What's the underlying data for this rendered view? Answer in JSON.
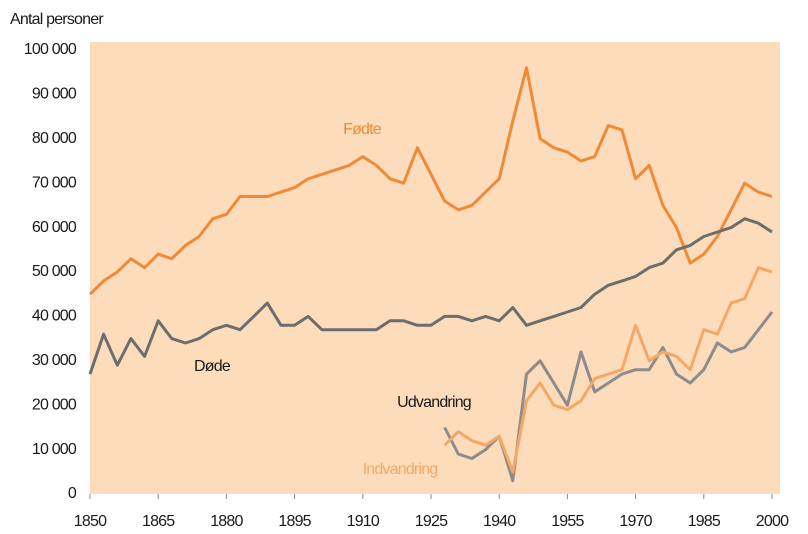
{
  "chart_data": {
    "type": "line",
    "y_axis_label": "Antal personer",
    "x": [
      1850,
      1853,
      1856,
      1859,
      1862,
      1865,
      1868,
      1871,
      1874,
      1877,
      1880,
      1883,
      1886,
      1889,
      1892,
      1895,
      1898,
      1901,
      1904,
      1907,
      1910,
      1913,
      1916,
      1919,
      1922,
      1925,
      1928,
      1931,
      1934,
      1937,
      1940,
      1943,
      1946,
      1949,
      1952,
      1955,
      1958,
      1961,
      1964,
      1967,
      1970,
      1973,
      1976,
      1979,
      1982,
      1985,
      1988,
      1991,
      1994,
      1997,
      2000
    ],
    "series": [
      {
        "name": "Fødte",
        "color": "#f08a36",
        "values": [
          45000,
          48000,
          50000,
          53000,
          51000,
          54000,
          53000,
          56000,
          58000,
          62000,
          63000,
          67000,
          67000,
          67000,
          68000,
          69000,
          71000,
          72000,
          73000,
          74000,
          76000,
          74000,
          71000,
          70000,
          78000,
          72000,
          66000,
          64000,
          65000,
          68000,
          71000,
          84000,
          96000,
          80000,
          78000,
          77000,
          75000,
          76000,
          83000,
          82000,
          71000,
          74000,
          65000,
          60000,
          52000,
          54000,
          58000,
          64000,
          70000,
          68000,
          67000
        ]
      },
      {
        "name": "Døde",
        "color": "#6d6d6d",
        "values": [
          27000,
          36000,
          29000,
          35000,
          31000,
          39000,
          35000,
          34000,
          35000,
          37000,
          38000,
          37000,
          40000,
          43000,
          38000,
          38000,
          40000,
          37000,
          37000,
          37000,
          37000,
          37000,
          39000,
          39000,
          38000,
          38000,
          40000,
          40000,
          39000,
          40000,
          39000,
          42000,
          38000,
          39000,
          40000,
          41000,
          42000,
          45000,
          47000,
          48000,
          49000,
          51000,
          52000,
          55000,
          56000,
          58000,
          59000,
          60000,
          62000,
          61000,
          59000
        ]
      },
      {
        "name": "Udvandring",
        "color": "#8c8c8c",
        "values": [
          null,
          null,
          null,
          null,
          null,
          null,
          null,
          null,
          null,
          null,
          null,
          null,
          null,
          null,
          null,
          null,
          null,
          null,
          null,
          null,
          null,
          null,
          null,
          null,
          null,
          null,
          15000,
          9000,
          8000,
          10000,
          13000,
          3000,
          27000,
          30000,
          25000,
          20000,
          32000,
          23000,
          25000,
          27000,
          28000,
          28000,
          33000,
          27000,
          25000,
          28000,
          34000,
          32000,
          33000,
          37000,
          41000
        ]
      },
      {
        "name": "Indvandring",
        "color": "#f5a866",
        "values": [
          null,
          null,
          null,
          null,
          null,
          null,
          null,
          null,
          null,
          null,
          null,
          null,
          null,
          null,
          null,
          null,
          null,
          null,
          null,
          null,
          null,
          null,
          null,
          null,
          null,
          null,
          11000,
          14000,
          12000,
          11000,
          13000,
          5000,
          21000,
          25000,
          20000,
          19000,
          21000,
          26000,
          27000,
          28000,
          38000,
          30000,
          32000,
          31000,
          28000,
          37000,
          36000,
          43000,
          44000,
          51000,
          50000
        ]
      }
    ],
    "xlim": [
      1850,
      2000
    ],
    "xticks": [
      1850,
      1865,
      1880,
      1895,
      1910,
      1925,
      1940,
      1955,
      1970,
      1985,
      2000
    ],
    "ylim": [
      0,
      100000
    ],
    "yticks": [
      0,
      {
        "value": 10000,
        "label": "10 000"
      },
      {
        "value": 20000,
        "label": "20 000"
      },
      {
        "value": 30000,
        "label": "30 000"
      },
      {
        "value": 40000,
        "label": "40 000"
      },
      {
        "value": 50000,
        "label": "50 000"
      },
      {
        "value": 60000,
        "label": "60 000"
      },
      {
        "value": 70000,
        "label": "70 000"
      },
      {
        "value": 80000,
        "label": "80 000"
      },
      {
        "value": 90000,
        "label": "90 000"
      },
      {
        "value": 100000,
        "label": "100 000"
      }
    ],
    "background": "#fddcbc"
  }
}
